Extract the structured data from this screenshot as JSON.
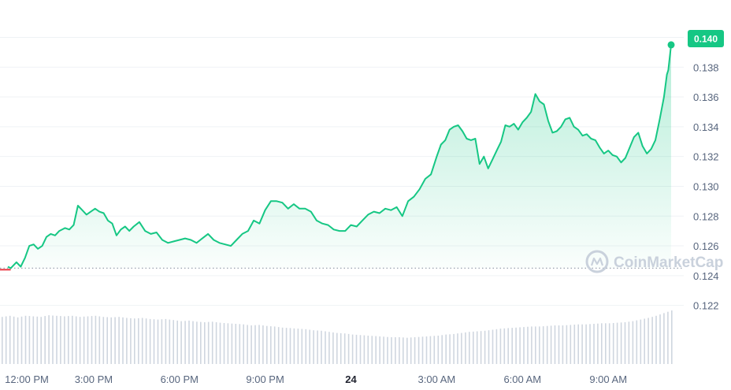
{
  "chart_data": {
    "type": "area",
    "y_axis": {
      "min": 0.1205,
      "max": 0.1405,
      "ticks": [
        "0.140",
        "0.138",
        "0.136",
        "0.134",
        "0.132",
        "0.130",
        "0.128",
        "0.126",
        "0.124",
        "0.122"
      ]
    },
    "x_axis": {
      "ticks": [
        {
          "label": "12:00 PM",
          "t": 0,
          "bold": false
        },
        {
          "label": "3:00 PM",
          "t": 3,
          "bold": false
        },
        {
          "label": "6:00 PM",
          "t": 6,
          "bold": false
        },
        {
          "label": "9:00 PM",
          "t": 9,
          "bold": false
        },
        {
          "label": "24",
          "t": 12,
          "bold": true
        },
        {
          "label": "3:00 AM",
          "t": 15,
          "bold": false
        },
        {
          "label": "6:00 AM",
          "t": 18,
          "bold": false
        },
        {
          "label": "9:00 AM",
          "t": 21,
          "bold": false
        }
      ],
      "t_max": 23.2
    },
    "reference_price": 0.1245,
    "current_price": "0.140",
    "watermark": "CoinMarketCap",
    "colors": {
      "line": "#16c784",
      "badge": "#16c784",
      "volume": "#cfd6df",
      "below_reference": "#ea3943"
    },
    "series": [
      {
        "points": [
          [
            0.0,
            0.1246
          ],
          [
            0.1,
            0.1245
          ],
          [
            0.2,
            0.1247
          ],
          [
            0.3,
            0.1249
          ],
          [
            0.45,
            0.1246
          ],
          [
            0.6,
            0.1252
          ],
          [
            0.75,
            0.126
          ],
          [
            0.9,
            0.1261
          ],
          [
            1.05,
            0.1258
          ],
          [
            1.2,
            0.126
          ],
          [
            1.35,
            0.1266
          ],
          [
            1.5,
            0.1268
          ],
          [
            1.65,
            0.1267
          ],
          [
            1.8,
            0.127
          ],
          [
            2.0,
            0.1272
          ],
          [
            2.15,
            0.1271
          ],
          [
            2.3,
            0.1274
          ],
          [
            2.45,
            0.1287
          ],
          [
            2.6,
            0.1284
          ],
          [
            2.75,
            0.1281
          ],
          [
            2.9,
            0.1283
          ],
          [
            3.05,
            0.1285
          ],
          [
            3.2,
            0.1283
          ],
          [
            3.35,
            0.1282
          ],
          [
            3.5,
            0.1277
          ],
          [
            3.65,
            0.1275
          ],
          [
            3.8,
            0.1267
          ],
          [
            3.95,
            0.1271
          ],
          [
            4.1,
            0.1273
          ],
          [
            4.25,
            0.127
          ],
          [
            4.4,
            0.1273
          ],
          [
            4.6,
            0.1276
          ],
          [
            4.8,
            0.127
          ],
          [
            5.0,
            0.1268
          ],
          [
            5.2,
            0.1269
          ],
          [
            5.4,
            0.1264
          ],
          [
            5.6,
            0.1262
          ],
          [
            5.8,
            0.1263
          ],
          [
            6.0,
            0.1264
          ],
          [
            6.2,
            0.1265
          ],
          [
            6.4,
            0.1264
          ],
          [
            6.6,
            0.1262
          ],
          [
            6.8,
            0.1265
          ],
          [
            7.0,
            0.1268
          ],
          [
            7.2,
            0.1264
          ],
          [
            7.4,
            0.1262
          ],
          [
            7.6,
            0.1261
          ],
          [
            7.8,
            0.126
          ],
          [
            8.0,
            0.1264
          ],
          [
            8.2,
            0.1268
          ],
          [
            8.4,
            0.127
          ],
          [
            8.6,
            0.1277
          ],
          [
            8.8,
            0.1275
          ],
          [
            9.0,
            0.1284
          ],
          [
            9.2,
            0.129
          ],
          [
            9.4,
            0.129
          ],
          [
            9.6,
            0.1289
          ],
          [
            9.8,
            0.1285
          ],
          [
            10.0,
            0.1288
          ],
          [
            10.2,
            0.1285
          ],
          [
            10.4,
            0.1285
          ],
          [
            10.6,
            0.1283
          ],
          [
            10.8,
            0.1277
          ],
          [
            11.0,
            0.1275
          ],
          [
            11.2,
            0.1274
          ],
          [
            11.4,
            0.1271
          ],
          [
            11.6,
            0.127
          ],
          [
            11.8,
            0.127
          ],
          [
            12.0,
            0.1274
          ],
          [
            12.2,
            0.1273
          ],
          [
            12.4,
            0.1277
          ],
          [
            12.6,
            0.1281
          ],
          [
            12.8,
            0.1283
          ],
          [
            13.0,
            0.1282
          ],
          [
            13.2,
            0.1285
          ],
          [
            13.4,
            0.1284
          ],
          [
            13.6,
            0.1286
          ],
          [
            13.8,
            0.128
          ],
          [
            14.0,
            0.129
          ],
          [
            14.2,
            0.1293
          ],
          [
            14.4,
            0.1298
          ],
          [
            14.6,
            0.1305
          ],
          [
            14.8,
            0.1308
          ],
          [
            15.0,
            0.132
          ],
          [
            15.15,
            0.1328
          ],
          [
            15.3,
            0.1331
          ],
          [
            15.45,
            0.1338
          ],
          [
            15.6,
            0.134
          ],
          [
            15.75,
            0.1341
          ],
          [
            15.9,
            0.1337
          ],
          [
            16.05,
            0.1332
          ],
          [
            16.2,
            0.1331
          ],
          [
            16.35,
            0.1332
          ],
          [
            16.5,
            0.1315
          ],
          [
            16.65,
            0.132
          ],
          [
            16.8,
            0.1312
          ],
          [
            16.95,
            0.1318
          ],
          [
            17.1,
            0.1324
          ],
          [
            17.25,
            0.133
          ],
          [
            17.4,
            0.1341
          ],
          [
            17.55,
            0.134
          ],
          [
            17.7,
            0.1342
          ],
          [
            17.85,
            0.1338
          ],
          [
            18.0,
            0.1343
          ],
          [
            18.15,
            0.1346
          ],
          [
            18.3,
            0.135
          ],
          [
            18.45,
            0.1362
          ],
          [
            18.6,
            0.1357
          ],
          [
            18.75,
            0.1355
          ],
          [
            18.9,
            0.1344
          ],
          [
            19.05,
            0.1336
          ],
          [
            19.2,
            0.1337
          ],
          [
            19.35,
            0.134
          ],
          [
            19.5,
            0.1345
          ],
          [
            19.65,
            0.1346
          ],
          [
            19.8,
            0.134
          ],
          [
            19.95,
            0.1338
          ],
          [
            20.1,
            0.1334
          ],
          [
            20.25,
            0.1335
          ],
          [
            20.4,
            0.1332
          ],
          [
            20.55,
            0.1331
          ],
          [
            20.7,
            0.1326
          ],
          [
            20.85,
            0.1322
          ],
          [
            21.0,
            0.1324
          ],
          [
            21.15,
            0.1321
          ],
          [
            21.3,
            0.132
          ],
          [
            21.45,
            0.1316
          ],
          [
            21.6,
            0.1319
          ],
          [
            21.75,
            0.1326
          ],
          [
            21.9,
            0.1333
          ],
          [
            22.05,
            0.1336
          ],
          [
            22.2,
            0.1327
          ],
          [
            22.35,
            0.1322
          ],
          [
            22.5,
            0.1325
          ],
          [
            22.65,
            0.1331
          ],
          [
            22.8,
            0.1345
          ],
          [
            22.95,
            0.136
          ],
          [
            23.05,
            0.1375
          ],
          [
            23.1,
            0.1378
          ],
          [
            23.2,
            0.1395
          ]
        ]
      }
    ],
    "volume": [
      0.88,
      0.9,
      0.87,
      0.9,
      0.89,
      0.88,
      0.91,
      0.9,
      0.89,
      0.9,
      0.88,
      0.89,
      0.9,
      0.88,
      0.87,
      0.88,
      0.86,
      0.85,
      0.86,
      0.84,
      0.83,
      0.84,
      0.82,
      0.8,
      0.81,
      0.79,
      0.78,
      0.79,
      0.77,
      0.76,
      0.75,
      0.74,
      0.72,
      0.73,
      0.71,
      0.7,
      0.68,
      0.67,
      0.66,
      0.65,
      0.63,
      0.62,
      0.6,
      0.58,
      0.57,
      0.55,
      0.54,
      0.53,
      0.52,
      0.51,
      0.5,
      0.5,
      0.49,
      0.5,
      0.51,
      0.52,
      0.53,
      0.55,
      0.56,
      0.58,
      0.6,
      0.61,
      0.62,
      0.64,
      0.66,
      0.67,
      0.68,
      0.69,
      0.7,
      0.7,
      0.71,
      0.72,
      0.72,
      0.73,
      0.74,
      0.74,
      0.75,
      0.76,
      0.76,
      0.77,
      0.78,
      0.8,
      0.83,
      0.86,
      0.9,
      0.95,
      1.0
    ]
  }
}
